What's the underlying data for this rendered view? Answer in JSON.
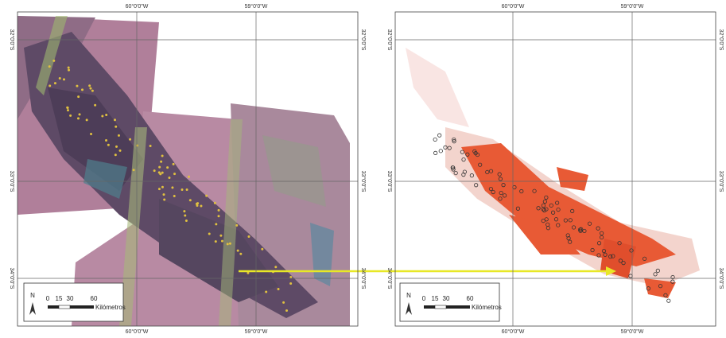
{
  "panels": [
    {
      "top_labels": [
        "60°0'0\"W",
        "59°0'0\"W"
      ],
      "bottom_labels": [
        "60°0'0\"W",
        "59°0'0\"W"
      ],
      "left_labels": [
        "32°0'0\"S",
        "33°0'0\"S",
        "34°0'0\"S"
      ],
      "right_labels": [
        "32°0'0\"S",
        "33°0'0\"S",
        "34°0'0\"S"
      ],
      "scale": {
        "ticks": [
          "0",
          "15",
          "30",
          "60"
        ],
        "unit": "Kilómetros"
      },
      "north": "N"
    },
    {
      "top_labels": [
        "60°0'0\"W",
        "59°0'0\"W"
      ],
      "bottom_labels": [
        "60°0'0\"W",
        "59°0'0\"W"
      ],
      "left_labels": [
        "32°0'0\"S",
        "33°0'0\"S",
        "34°0'0\"S"
      ],
      "right_labels": [
        "32°0'0\"S",
        "33°0'0\"S",
        "34°0'0\"S"
      ],
      "scale": {
        "ticks": [
          "0",
          "15",
          "30",
          "60"
        ],
        "unit": "Kilómetros"
      },
      "north": "N"
    }
  ]
}
